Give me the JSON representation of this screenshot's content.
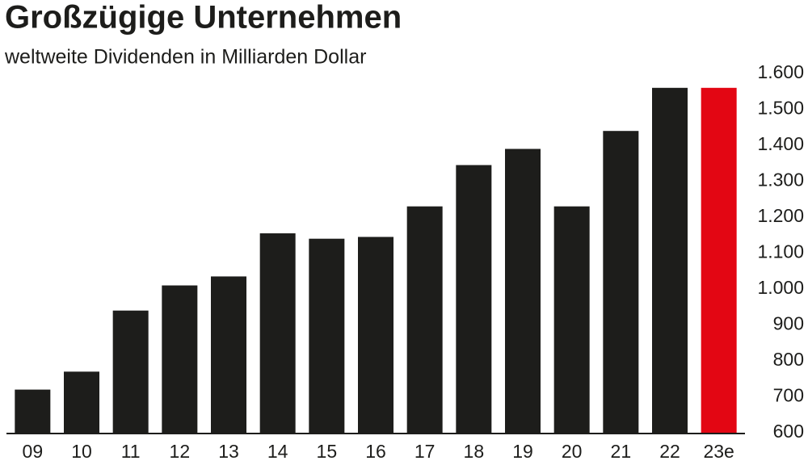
{
  "chart_data": {
    "type": "bar",
    "title": "Großzügige Unternehmen",
    "subtitle": "weltweite Dividenden in Milliarden Dollar",
    "categories": [
      "09",
      "10",
      "11",
      "12",
      "13",
      "14",
      "15",
      "16",
      "17",
      "18",
      "19",
      "20",
      "21",
      "22",
      "23e"
    ],
    "values": [
      720,
      770,
      940,
      1010,
      1035,
      1155,
      1140,
      1145,
      1230,
      1345,
      1390,
      1230,
      1440,
      1560,
      1560
    ],
    "colors": [
      "#1d1d1b",
      "#1d1d1b",
      "#1d1d1b",
      "#1d1d1b",
      "#1d1d1b",
      "#1d1d1b",
      "#1d1d1b",
      "#1d1d1b",
      "#1d1d1b",
      "#1d1d1b",
      "#1d1d1b",
      "#1d1d1b",
      "#1d1d1b",
      "#1d1d1b",
      "#e30613"
    ],
    "ylim": [
      600,
      1600
    ],
    "yticks": [
      600,
      700,
      800,
      900,
      {
        "value": 1000,
        "label": "1.000"
      },
      {
        "value": 1100,
        "label": "1.100"
      },
      {
        "value": 1200,
        "label": "1.200"
      },
      {
        "value": 1300,
        "label": "1.300"
      },
      {
        "value": 1400,
        "label": "1.400"
      },
      {
        "value": 1500,
        "label": "1.500"
      },
      {
        "value": 1600,
        "label": "1.600"
      }
    ],
    "grid": false
  }
}
